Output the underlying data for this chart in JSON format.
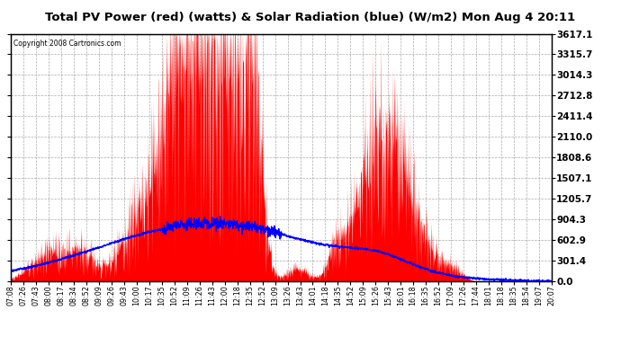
{
  "title": "Total PV Power (red) (watts) & Solar Radiation (blue) (W/m2) Mon Aug 4 20:11",
  "copyright": "Copyright 2008 Cartronics.com",
  "y_ticks": [
    0.0,
    301.4,
    602.9,
    904.3,
    1205.7,
    1507.1,
    1808.6,
    2110.0,
    2411.4,
    2712.8,
    3014.3,
    3315.7,
    3617.1
  ],
  "ymax": 3617.1,
  "bg_color": "#ffffff",
  "grid_color": "#888888",
  "red_color": "#ff0000",
  "blue_color": "#0000ff",
  "title_bg": "#c0c0c0",
  "x_labels": [
    "07:08",
    "07:26",
    "07:43",
    "08:00",
    "08:17",
    "08:34",
    "08:52",
    "09:09",
    "09:26",
    "09:43",
    "10:00",
    "10:17",
    "10:35",
    "10:52",
    "11:09",
    "11:26",
    "11:43",
    "12:00",
    "12:18",
    "12:35",
    "12:52",
    "13:09",
    "13:26",
    "13:43",
    "14:01",
    "14:18",
    "14:35",
    "14:52",
    "15:09",
    "15:26",
    "15:43",
    "16:01",
    "16:18",
    "16:35",
    "16:52",
    "17:09",
    "17:26",
    "17:44",
    "18:01",
    "18:18",
    "18:35",
    "18:54",
    "19:07",
    "20:07"
  ]
}
